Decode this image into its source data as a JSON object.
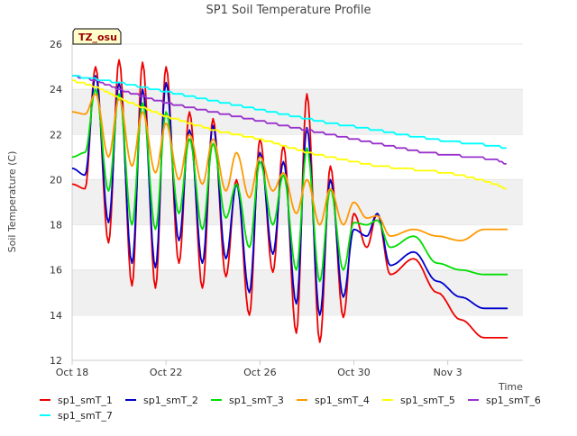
{
  "chart_data": {
    "type": "line",
    "title": "SP1 Soil Temperature Profile",
    "xlabel": "Time",
    "ylabel": "Soil Temperature (C)",
    "annotation": "TZ_osu",
    "ylim": [
      12,
      26
    ],
    "yticks": [
      12,
      14,
      16,
      18,
      20,
      22,
      24,
      26
    ],
    "xlim": [
      0,
      19.2
    ],
    "xticks": [
      0,
      4,
      8,
      12,
      16
    ],
    "xtick_labels": [
      "Oct 18",
      "Oct 22",
      "Oct 26",
      "Oct 30",
      "Nov 3"
    ],
    "grid": "horizontal bands",
    "legend": "bottom",
    "series": [
      {
        "name": "sp1_smT_1",
        "color": "#ee0000",
        "mode": "osc",
        "base": [
          [
            0,
            19.8
          ],
          [
            1,
            20.5
          ],
          [
            4,
            20.5
          ],
          [
            8,
            19.5
          ],
          [
            12,
            17.0
          ],
          [
            16,
            16.5
          ],
          [
            18.5,
            14.5
          ]
        ],
        "peak": [
          25.0,
          25.3,
          25.2,
          25.0,
          23.0,
          22.7,
          20.0,
          21.8,
          21.5,
          23.8,
          20.6,
          18.5,
          18.5
        ],
        "trough": [
          19.6,
          17.2,
          15.3,
          15.2,
          16.3,
          15.2,
          15.7,
          14.0,
          15.9,
          13.2,
          12.8,
          13.9,
          17.0,
          15.8,
          16.5,
          15.0,
          13.8,
          13.0
        ]
      },
      {
        "name": "sp1_smT_2",
        "color": "#0000cc",
        "mode": "osc",
        "base": [
          [
            0,
            20.5
          ],
          [
            1,
            21.0
          ],
          [
            4,
            21.0
          ],
          [
            8,
            19.5
          ],
          [
            12,
            17.5
          ],
          [
            16,
            17.0
          ],
          [
            18.5,
            15.5
          ]
        ],
        "peak": [
          24.6,
          24.3,
          24.0,
          24.3,
          22.2,
          22.4,
          19.8,
          21.2,
          20.8,
          22.3,
          20.0,
          17.8,
          18.5
        ],
        "trough": [
          20.2,
          18.1,
          16.3,
          16.1,
          17.3,
          16.3,
          16.5,
          15.0,
          16.7,
          14.5,
          14.0,
          14.8,
          17.5,
          16.2,
          16.8,
          15.5,
          14.8,
          14.3
        ]
      },
      {
        "name": "sp1_smT_3",
        "color": "#00dd00",
        "mode": "osc",
        "base": [
          [
            0,
            21.0
          ],
          [
            1,
            21.8
          ],
          [
            4,
            21.5
          ],
          [
            8,
            20.0
          ],
          [
            12,
            18.0
          ],
          [
            16,
            17.5
          ],
          [
            18.5,
            16.5
          ]
        ],
        "peak": [
          24.0,
          23.8,
          23.4,
          23.0,
          21.8,
          21.6,
          19.8,
          20.8,
          20.2,
          21.4,
          19.6,
          18.1,
          18.2
        ],
        "trough": [
          21.2,
          19.5,
          18.0,
          17.8,
          18.5,
          17.8,
          18.3,
          17.0,
          18.0,
          16.0,
          15.5,
          16.0,
          18.0,
          17.0,
          17.5,
          16.3,
          16.0,
          15.8
        ]
      },
      {
        "name": "sp1_smT_4",
        "color": "#ff9900",
        "mode": "osc",
        "base": [
          [
            0,
            23.0
          ],
          [
            2,
            22.0
          ],
          [
            4,
            21.6
          ],
          [
            8,
            20.8
          ],
          [
            12,
            19.5
          ],
          [
            16,
            18.5
          ],
          [
            18.5,
            18.0
          ]
        ],
        "peak": [
          23.8,
          23.6,
          23.0,
          22.5,
          22.0,
          21.8,
          21.2,
          21.0,
          20.3,
          20.0,
          19.6,
          19.0,
          18.4
        ],
        "trough": [
          22.9,
          21.0,
          20.6,
          20.3,
          20.0,
          19.8,
          19.5,
          19.2,
          19.5,
          18.5,
          18.0,
          18.0,
          18.3,
          17.5,
          17.8,
          17.5,
          17.3,
          17.8
        ]
      },
      {
        "name": "sp1_smT_5",
        "color": "#ffff00",
        "mode": "decay",
        "knots": [
          [
            0,
            24.4
          ],
          [
            1,
            24.1
          ],
          [
            2,
            23.6
          ],
          [
            3,
            23.2
          ],
          [
            4,
            22.8
          ],
          [
            5,
            22.5
          ],
          [
            6,
            22.2
          ],
          [
            7,
            22.0
          ],
          [
            8,
            21.8
          ],
          [
            9,
            21.5
          ],
          [
            10,
            21.2
          ],
          [
            11,
            21.0
          ],
          [
            12,
            20.8
          ],
          [
            13,
            20.6
          ],
          [
            14,
            20.5
          ],
          [
            15,
            20.4
          ],
          [
            16,
            20.3
          ],
          [
            17,
            20.1
          ],
          [
            18,
            19.8
          ],
          [
            18.5,
            19.6
          ]
        ]
      },
      {
        "name": "sp1_smT_6",
        "color": "#9933cc",
        "mode": "decay",
        "knots": [
          [
            0,
            24.6
          ],
          [
            1,
            24.4
          ],
          [
            2,
            24.0
          ],
          [
            3,
            23.7
          ],
          [
            4,
            23.4
          ],
          [
            5,
            23.2
          ],
          [
            6,
            23.0
          ],
          [
            7,
            22.8
          ],
          [
            8,
            22.6
          ],
          [
            9,
            22.4
          ],
          [
            10,
            22.2
          ],
          [
            11,
            22.0
          ],
          [
            12,
            21.8
          ],
          [
            13,
            21.6
          ],
          [
            14,
            21.4
          ],
          [
            15,
            21.2
          ],
          [
            16,
            21.1
          ],
          [
            17,
            21.0
          ],
          [
            18,
            20.9
          ],
          [
            18.5,
            20.7
          ]
        ]
      },
      {
        "name": "sp1_smT_7",
        "color": "#00ffff",
        "mode": "decay",
        "knots": [
          [
            0,
            24.6
          ],
          [
            1,
            24.45
          ],
          [
            2,
            24.3
          ],
          [
            3,
            24.1
          ],
          [
            4,
            23.9
          ],
          [
            5,
            23.7
          ],
          [
            6,
            23.5
          ],
          [
            7,
            23.3
          ],
          [
            8,
            23.1
          ],
          [
            9,
            22.9
          ],
          [
            10,
            22.7
          ],
          [
            11,
            22.5
          ],
          [
            12,
            22.35
          ],
          [
            13,
            22.2
          ],
          [
            14,
            22.0
          ],
          [
            15,
            21.85
          ],
          [
            16,
            21.7
          ],
          [
            17,
            21.6
          ],
          [
            18,
            21.5
          ],
          [
            18.5,
            21.4
          ]
        ]
      }
    ]
  }
}
